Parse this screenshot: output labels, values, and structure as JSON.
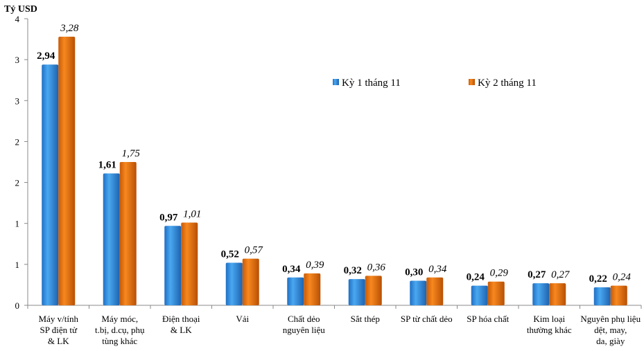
{
  "chart_data": {
    "type": "bar",
    "ylabel": "Tỷ USD",
    "ylim": [
      0,
      3.5
    ],
    "yticks": [
      0,
      0.5,
      1,
      1.5,
      2,
      2.5,
      3,
      3.5
    ],
    "ytick_labels": [
      "0",
      "1",
      "1",
      "2",
      "2",
      "3",
      "3",
      "4"
    ],
    "grid": false,
    "legend_position": "top-right",
    "categories": [
      [
        "Máy v/tính",
        "SP điện tử",
        "& LK"
      ],
      [
        "Máy móc,",
        "t.bị, d.cụ, phụ",
        "tùng khác"
      ],
      [
        "Điện thoại",
        "& LK"
      ],
      [
        "Vải"
      ],
      [
        "Chất dẻo",
        "nguyên liệu"
      ],
      [
        "Sắt thép"
      ],
      [
        "SP từ chất dẻo"
      ],
      [
        "SP hóa chất"
      ],
      [
        "Kim loại",
        "thường khác"
      ],
      [
        "Nguyên phụ liệu",
        "dệt, may,",
        "da, giày"
      ]
    ],
    "series": [
      {
        "name": "Kỳ 1 tháng 11",
        "color": "#3399e6",
        "values": [
          2.94,
          1.61,
          0.97,
          0.52,
          0.34,
          0.32,
          0.3,
          0.24,
          0.27,
          0.22
        ],
        "labels": [
          "2,94",
          "1,61",
          "0,97",
          "0,52",
          "0,34",
          "0,32",
          "0,30",
          "0,24",
          "0,27",
          "0,22"
        ]
      },
      {
        "name": "Kỳ 2 tháng 11",
        "color": "#ef7a16",
        "values": [
          3.28,
          1.75,
          1.01,
          0.57,
          0.39,
          0.36,
          0.34,
          0.29,
          0.27,
          0.24
        ],
        "labels": [
          "3,28",
          "1,75",
          "1,01",
          "0,57",
          "0,39",
          "0,36",
          "0,34",
          "0,29",
          "0,27",
          "0,24"
        ]
      }
    ]
  }
}
